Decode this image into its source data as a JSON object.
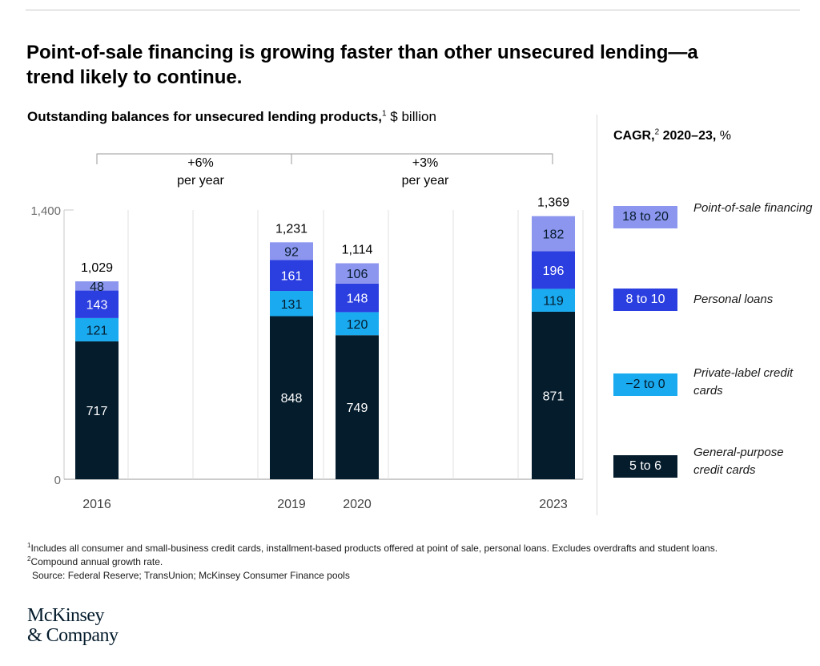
{
  "headline": "Point-of-sale financing is growing faster than other unsecured lending—a trend likely to continue.",
  "subtitle": {
    "main": "Outstanding balances for unsecured lending products,",
    "note_ref": "1",
    "unit": " $ billion"
  },
  "legend": {
    "header_main": "CAGR,",
    "header_ref": "2",
    "header_rest": " 2020–23,",
    "header_unit": " %",
    "items": [
      {
        "range": "18 to 20",
        "label": "Point-of-sale financing",
        "color": "#8c96ee"
      },
      {
        "range": "8 to 10",
        "label": "Personal loans",
        "color": "#2b3ee0"
      },
      {
        "range": "−2 to 0",
        "label": "Private-label credit cards",
        "color": "#1aaaf0"
      },
      {
        "range": "5 to 6",
        "label": "General-purpose credit cards",
        "color": "#051c2c"
      }
    ]
  },
  "chart_data": {
    "type": "bar",
    "stacked": true,
    "categories": [
      "2016",
      "2019",
      "2020",
      "2023"
    ],
    "series": [
      {
        "name": "General-purpose credit cards",
        "values": [
          717,
          848,
          749,
          871
        ],
        "color": "#051c2c",
        "label_color": "#ffffff"
      },
      {
        "name": "Private-label credit cards",
        "values": [
          121,
          131,
          120,
          119
        ],
        "color": "#1aaaf0",
        "label_color": "#051c2c"
      },
      {
        "name": "Personal loans",
        "values": [
          143,
          161,
          148,
          196
        ],
        "color": "#2b3ee0",
        "label_color": "#ffffff"
      },
      {
        "name": "Point-of-sale financing",
        "values": [
          48,
          92,
          106,
          182
        ],
        "color": "#8c96ee",
        "label_color": "#051c2c"
      }
    ],
    "totals": [
      "1,029",
      "1,231",
      "1,114",
      "1,369"
    ],
    "yticks": [
      {
        "value": 0,
        "label": "0"
      },
      {
        "value": 1400,
        "label": "1,400"
      }
    ],
    "ylim": [
      0,
      1400
    ],
    "growth_annotations": [
      {
        "from": "2016",
        "to": "2019",
        "rate": "+6%",
        "text": "per year"
      },
      {
        "from": "2019",
        "to": "2023",
        "rate": "+3%",
        "text": "per year"
      }
    ]
  },
  "footnotes": [
    {
      "ref": "1",
      "text": "Includes all consumer and small-business credit cards, installment-based products offered at point of sale, personal loans. Excludes overdrafts and student loans."
    },
    {
      "ref": "2",
      "text": "Compound annual growth rate."
    }
  ],
  "source": "Source: Federal Reserve; TransUnion; McKinsey Consumer Finance pools",
  "logo": {
    "line1": "McKinsey",
    "line2": "& Company"
  }
}
